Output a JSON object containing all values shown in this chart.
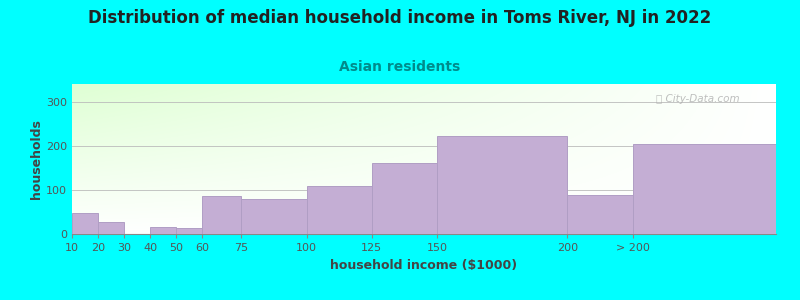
{
  "title": "Distribution of median household income in Toms River, NJ in 2022",
  "subtitle": "Asian residents",
  "xlabel": "household income ($1000)",
  "ylabel": "households",
  "background_color": "#00FFFF",
  "bar_color": "#c4aed4",
  "bar_edge_color": "#b09ec4",
  "categories": [
    "10",
    "20",
    "30",
    "40",
    "50",
    "60",
    "75",
    "100",
    "125",
    "150",
    "200",
    "> 200"
  ],
  "values": [
    48,
    28,
    0,
    17,
    13,
    87,
    80,
    108,
    160,
    222,
    88,
    205
  ],
  "x_lefts": [
    10,
    20,
    30,
    40,
    50,
    60,
    75,
    100,
    125,
    150,
    200,
    225
  ],
  "x_widths": [
    10,
    10,
    10,
    10,
    10,
    15,
    25,
    25,
    25,
    50,
    25,
    55
  ],
  "tick_positions": [
    10,
    20,
    30,
    40,
    50,
    60,
    75,
    100,
    125,
    150,
    200,
    225
  ],
  "xlim": [
    10,
    280
  ],
  "ylim": [
    0,
    340
  ],
  "yticks": [
    0,
    100,
    200,
    300
  ],
  "watermark": "City-Data.com",
  "title_fontsize": 12,
  "subtitle_fontsize": 10,
  "axis_label_fontsize": 9,
  "tick_fontsize": 8,
  "ylabel_fontsize": 9
}
